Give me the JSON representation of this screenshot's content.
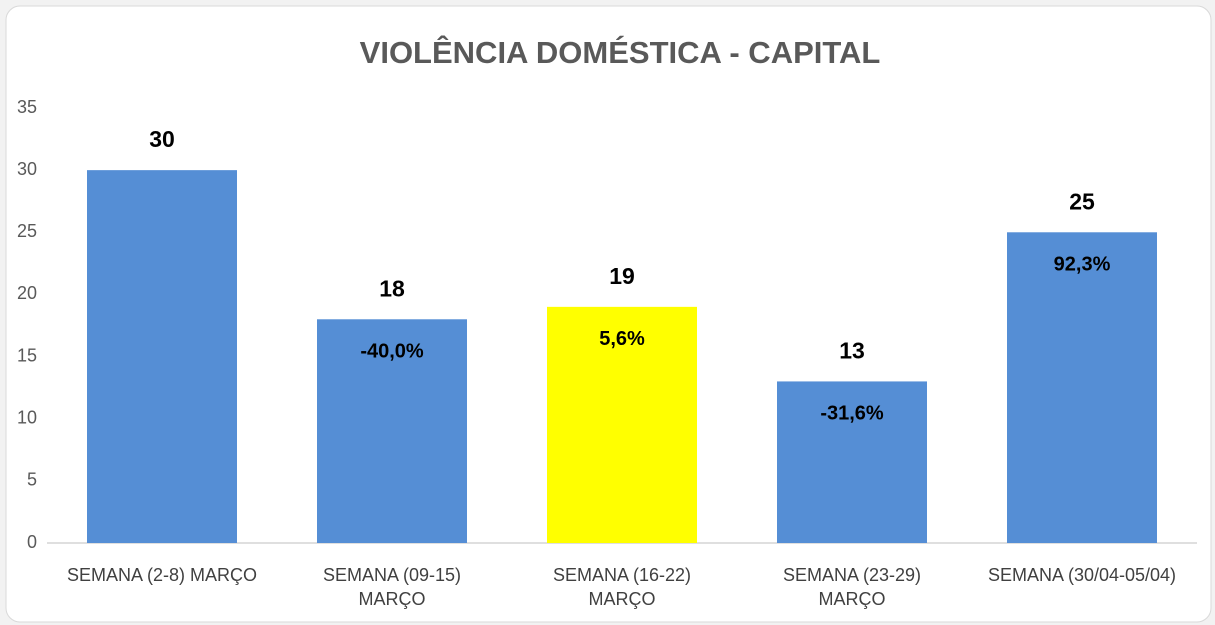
{
  "chart_data": {
    "type": "bar",
    "title": "VIOLÊNCIA DOMÉSTICA - CAPITAL",
    "categories": [
      "SEMANA (2-8) MARÇO",
      "SEMANA (09-15) MARÇO",
      "SEMANA (16-22) MARÇO",
      "SEMANA (23-29) MARÇO",
      "SEMANA (30/04-05/04)"
    ],
    "values": [
      30,
      18,
      19,
      13,
      25
    ],
    "colors": [
      "#558ed5",
      "#558ed5",
      "#ffff00",
      "#558ed5",
      "#558ed5"
    ],
    "annotations": [
      null,
      "-40,0%",
      "5,6%",
      "-31,6%",
      "92,3%"
    ],
    "ylim": [
      0,
      35
    ],
    "yticks": [
      0,
      5,
      10,
      15,
      20,
      25,
      30,
      35
    ],
    "grid": false
  }
}
